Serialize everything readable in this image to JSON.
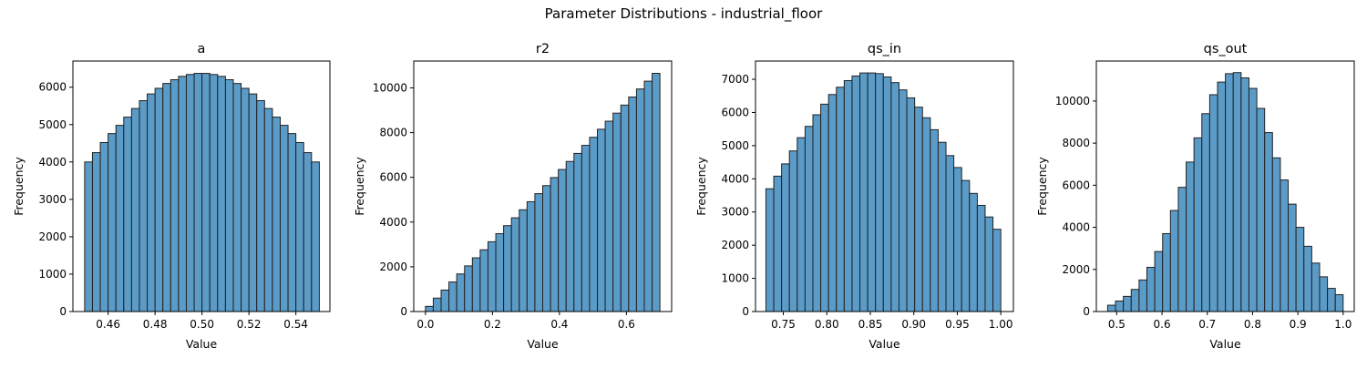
{
  "figure": {
    "suptitle": "Parameter Distributions - industrial_floor",
    "bar_color": "#5b9bc8",
    "edge_color": "#222222"
  },
  "chart_data": [
    {
      "type": "bar",
      "title": "a",
      "xlabel": "Value",
      "ylabel": "Frequency",
      "xlim": [
        0.445,
        0.5545
      ],
      "ylim": [
        0,
        6700
      ],
      "xticks": [
        0.46,
        0.48,
        0.5,
        0.52,
        0.54
      ],
      "xtick_labels": [
        "0.46",
        "0.48",
        "0.50",
        "0.52",
        "0.54"
      ],
      "yticks": [
        0,
        1000,
        2000,
        3000,
        4000,
        5000,
        6000
      ],
      "ytick_labels": [
        "0",
        "1000",
        "2000",
        "3000",
        "4000",
        "5000",
        "6000"
      ],
      "bin_start": 0.45,
      "bin_end": 0.55,
      "values": [
        4000,
        4250,
        4520,
        4760,
        4980,
        5200,
        5430,
        5640,
        5820,
        5970,
        6100,
        6200,
        6290,
        6340,
        6370,
        6370,
        6340,
        6290,
        6200,
        6100,
        5970,
        5820,
        5640,
        5430,
        5200,
        4980,
        4760,
        4520,
        4250,
        4000
      ]
    },
    {
      "type": "bar",
      "title": "r2",
      "xlabel": "Value",
      "ylabel": "Frequency",
      "xlim": [
        -0.035,
        0.735
      ],
      "ylim": [
        0,
        11200
      ],
      "xticks": [
        0.0,
        0.2,
        0.4,
        0.6
      ],
      "xtick_labels": [
        "0.0",
        "0.2",
        "0.4",
        "0.6"
      ],
      "yticks": [
        0,
        2000,
        4000,
        6000,
        8000,
        10000
      ],
      "ytick_labels": [
        "0",
        "2000",
        "4000",
        "6000",
        "8000",
        "10000"
      ],
      "bin_start": 0.0,
      "bin_end": 0.7,
      "values": [
        230,
        600,
        960,
        1320,
        1680,
        2040,
        2400,
        2760,
        3120,
        3480,
        3840,
        4190,
        4550,
        4910,
        5270,
        5630,
        5990,
        6350,
        6710,
        7070,
        7430,
        7790,
        8150,
        8510,
        8870,
        9230,
        9590,
        9950,
        10300,
        10650
      ]
    },
    {
      "type": "bar",
      "title": "qs_in",
      "xlabel": "Value",
      "ylabel": "Frequency",
      "xlim": [
        0.718,
        1.0145
      ],
      "ylim": [
        0,
        7550
      ],
      "xticks": [
        0.75,
        0.8,
        0.85,
        0.9,
        0.95,
        1.0
      ],
      "xtick_labels": [
        "0.75",
        "0.80",
        "0.85",
        "0.90",
        "0.95",
        "1.00"
      ],
      "yticks": [
        0,
        1000,
        2000,
        3000,
        4000,
        5000,
        6000,
        7000
      ],
      "ytick_labels": [
        "0",
        "1000",
        "2000",
        "3000",
        "4000",
        "5000",
        "6000",
        "7000"
      ],
      "bin_start": 0.73,
      "bin_end": 1.0,
      "values": [
        3700,
        4080,
        4450,
        4840,
        5240,
        5580,
        5930,
        6250,
        6540,
        6760,
        6960,
        7100,
        7190,
        7190,
        7170,
        7070,
        6900,
        6680,
        6440,
        6160,
        5840,
        5480,
        5100,
        4700,
        4340,
        3950,
        3560,
        3200,
        2850,
        2480
      ]
    },
    {
      "type": "bar",
      "title": "qs_out",
      "xlabel": "Value",
      "ylabel": "Frequency",
      "xlim": [
        0.455,
        1.0245
      ],
      "ylim": [
        0,
        11900
      ],
      "xticks": [
        0.5,
        0.6,
        0.7,
        0.8,
        0.9,
        1.0
      ],
      "xtick_labels": [
        "0.5",
        "0.6",
        "0.7",
        "0.8",
        "0.9",
        "1.0"
      ],
      "yticks": [
        0,
        2000,
        4000,
        6000,
        8000,
        10000
      ],
      "ytick_labels": [
        "0",
        "2000",
        "4000",
        "6000",
        "8000",
        "10000"
      ],
      "bin_start": 0.48,
      "bin_end": 1.0,
      "values": [
        300,
        500,
        720,
        1050,
        1500,
        2100,
        2850,
        3700,
        4800,
        5900,
        7100,
        8250,
        9400,
        10300,
        10900,
        11300,
        11350,
        11100,
        10600,
        9650,
        8500,
        7300,
        6250,
        5100,
        4000,
        3100,
        2300,
        1650,
        1100,
        800
      ]
    }
  ]
}
